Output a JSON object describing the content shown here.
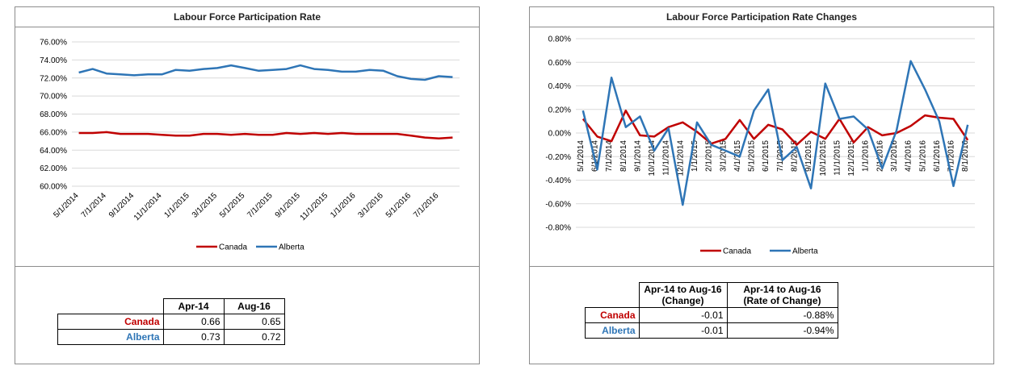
{
  "chart_data": [
    {
      "type": "line",
      "title": "Labour Force Participation Rate",
      "x": [
        "5/1/2014",
        "6/1/2014",
        "7/1/2014",
        "8/1/2014",
        "9/1/2014",
        "10/1/2014",
        "11/1/2014",
        "12/1/2014",
        "1/1/2015",
        "2/1/2015",
        "3/1/2015",
        "4/1/2015",
        "5/1/2015",
        "6/1/2015",
        "7/1/2015",
        "8/1/2015",
        "9/1/2015",
        "10/1/2015",
        "11/1/2015",
        "12/1/2015",
        "1/1/2016",
        "2/1/2016",
        "3/1/2016",
        "4/1/2016",
        "5/1/2016",
        "6/1/2016",
        "7/1/2016",
        "8/1/2016"
      ],
      "tick_labels": [
        "5/1/2014",
        "7/1/2014",
        "9/1/2014",
        "11/1/2014",
        "1/1/2015",
        "3/1/2015",
        "5/1/2015",
        "7/1/2015",
        "9/1/2015",
        "11/1/2015",
        "1/1/2016",
        "3/1/2016",
        "5/1/2016",
        "7/1/2016"
      ],
      "ytick_labels": [
        "60.00%",
        "62.00%",
        "64.00%",
        "66.00%",
        "68.00%",
        "70.00%",
        "72.00%",
        "74.00%",
        "76.00%"
      ],
      "ylim": [
        0.6,
        0.76
      ],
      "y_format": "percent",
      "grid": true,
      "legend": "bottom",
      "series": [
        {
          "name": "Canada",
          "color": "#c00000",
          "values": [
            0.659,
            0.659,
            0.66,
            0.658,
            0.658,
            0.658,
            0.657,
            0.656,
            0.656,
            0.658,
            0.658,
            0.657,
            0.658,
            0.657,
            0.657,
            0.659,
            0.658,
            0.659,
            0.658,
            0.659,
            0.658,
            0.658,
            0.658,
            0.658,
            0.656,
            0.654,
            0.653,
            0.654
          ]
        },
        {
          "name": "Alberta",
          "color": "#2e75b6",
          "values": [
            0.726,
            0.73,
            0.725,
            0.724,
            0.723,
            0.724,
            0.724,
            0.729,
            0.728,
            0.73,
            0.731,
            0.734,
            0.731,
            0.728,
            0.729,
            0.73,
            0.734,
            0.73,
            0.729,
            0.727,
            0.727,
            0.729,
            0.728,
            0.722,
            0.719,
            0.718,
            0.722,
            0.721
          ]
        }
      ]
    },
    {
      "type": "line",
      "title": "Labour Force Participation Rate Changes",
      "x": [
        "5/1/2014",
        "6/1/2014",
        "7/1/2014",
        "8/1/2014",
        "9/1/2014",
        "10/1/2014",
        "11/1/2014",
        "12/1/2014",
        "1/1/2015",
        "2/1/2015",
        "3/1/2015",
        "4/1/2015",
        "5/1/2015",
        "6/1/2015",
        "7/1/2015",
        "8/1/2015",
        "9/1/2015",
        "10/1/2015",
        "11/1/2015",
        "12/1/2015",
        "1/1/2016",
        "2/1/2016",
        "3/1/2016",
        "4/1/2016",
        "5/1/2016",
        "6/1/2016",
        "7/1/2016",
        "8/1/2016"
      ],
      "tick_labels": [
        "5/1/2014",
        "6/1/2014",
        "7/1/2014",
        "8/1/2014",
        "9/1/2014",
        "10/1/2014",
        "11/1/2014",
        "12/1/2014",
        "1/1/2015",
        "2/1/2015",
        "3/1/2015",
        "4/1/2015",
        "5/1/2015",
        "6/1/2015",
        "7/1/2015",
        "8/1/2015",
        "9/1/2015",
        "10/1/2015",
        "11/1/2015",
        "12/1/2015",
        "1/1/2016",
        "2/1/2016",
        "3/1/2016",
        "4/1/2016",
        "5/1/2016",
        "6/1/2016",
        "7/1/2016",
        "8/1/2016"
      ],
      "ytick_labels": [
        "-0.80%",
        "-0.60%",
        "-0.40%",
        "-0.20%",
        "0.00%",
        "0.20%",
        "0.40%",
        "0.60%",
        "0.80%"
      ],
      "ylim": [
        -0.008,
        0.008
      ],
      "y_format": "percent",
      "grid": true,
      "legend": "bottom",
      "series": [
        {
          "name": "Canada",
          "color": "#c00000",
          "values": [
            0.0012,
            -0.0003,
            -0.0007,
            0.0019,
            -0.0002,
            -0.0003,
            0.0005,
            0.0009,
            0.0001,
            -0.0009,
            -0.0005,
            0.0011,
            -0.0005,
            0.0007,
            0.0003,
            -0.001,
            0.0001,
            -0.0005,
            0.0012,
            -0.0008,
            0.0005,
            -0.0002,
            0.0,
            0.0006,
            0.0015,
            0.0013,
            0.0012,
            -0.0006
          ]
        },
        {
          "name": "Alberta",
          "color": "#2e75b6",
          "values": [
            0.0019,
            -0.0031,
            0.0047,
            0.0005,
            0.0014,
            -0.0015,
            0.0004,
            -0.0061,
            0.0009,
            -0.001,
            -0.0015,
            -0.002,
            0.0019,
            0.0037,
            -0.0023,
            -0.0012,
            -0.0047,
            0.0042,
            0.0012,
            0.0014,
            0.0003,
            -0.003,
            0.0002,
            0.0061,
            0.0037,
            0.001,
            -0.0045,
            0.0007
          ]
        }
      ]
    }
  ],
  "tables": {
    "left": {
      "headers": [
        "Apr-14",
        "Aug-16"
      ],
      "rows": [
        {
          "label": "Canada",
          "values": [
            "0.66",
            "0.65"
          ]
        },
        {
          "label": "Alberta",
          "values": [
            "0.73",
            "0.72"
          ]
        }
      ]
    },
    "right": {
      "headers": [
        {
          "line1": "Apr-14 to Aug-16",
          "line2": "(Change)"
        },
        {
          "line1": "Apr-14 to Aug-16",
          "line2": "(Rate of Change)"
        }
      ],
      "rows": [
        {
          "label": "Canada",
          "values": [
            "-0.01",
            "-0.88%"
          ]
        },
        {
          "label": "Alberta",
          "values": [
            "-0.01",
            "-0.94%"
          ]
        }
      ]
    }
  }
}
